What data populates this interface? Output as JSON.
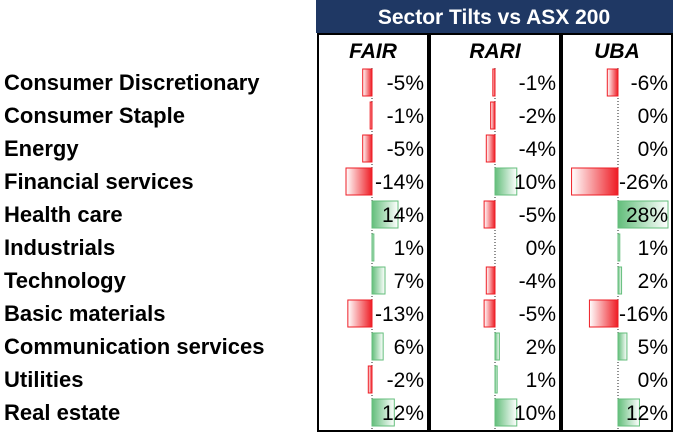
{
  "chart_data": {
    "type": "table",
    "title": "Sector Tilts vs ASX 200",
    "columns": [
      "FAIR",
      "RARI",
      "UBA"
    ],
    "rows": [
      {
        "sector": "Consumer Discretionary",
        "values": [
          -5,
          -1,
          -6
        ],
        "labels": [
          "-5%",
          "-1%",
          "-6%"
        ]
      },
      {
        "sector": "Consumer Staple",
        "values": [
          -1,
          -2,
          0
        ],
        "labels": [
          "-1%",
          "-2%",
          "0%"
        ]
      },
      {
        "sector": "Energy",
        "values": [
          -5,
          -4,
          0
        ],
        "labels": [
          "-5%",
          "-4%",
          "0%"
        ]
      },
      {
        "sector": "Financial services",
        "values": [
          -14,
          10,
          -26
        ],
        "labels": [
          "-14%",
          "10%",
          "-26%"
        ]
      },
      {
        "sector": "Health care",
        "values": [
          14,
          -5,
          28
        ],
        "labels": [
          "14%",
          "-5%",
          "28%"
        ]
      },
      {
        "sector": "Industrials",
        "values": [
          1,
          0,
          1
        ],
        "labels": [
          "1%",
          "0%",
          "1%"
        ]
      },
      {
        "sector": "Technology",
        "values": [
          7,
          -4,
          2
        ],
        "labels": [
          "7%",
          "-4%",
          "2%"
        ]
      },
      {
        "sector": "Basic materials",
        "values": [
          -13,
          -5,
          -16
        ],
        "labels": [
          "-13%",
          "-5%",
          "-16%"
        ]
      },
      {
        "sector": "Communication services",
        "values": [
          6,
          2,
          5
        ],
        "labels": [
          "6%",
          "2%",
          "5%"
        ]
      },
      {
        "sector": "Utilities",
        "values": [
          -2,
          1,
          0
        ],
        "labels": [
          "-2%",
          "1%",
          "0%"
        ]
      },
      {
        "sector": "Real estate",
        "values": [
          12,
          10,
          12
        ],
        "labels": [
          "12%",
          "10%",
          "12%"
        ]
      }
    ],
    "max_abs": 28,
    "colors": {
      "header_bg": "#1f3864",
      "negative": "#ee1c24",
      "positive": "#63be7b",
      "axis": "#222222"
    }
  }
}
